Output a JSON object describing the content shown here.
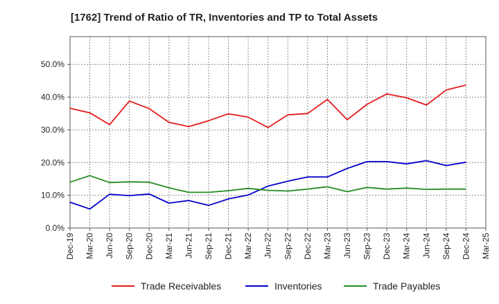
{
  "chart_data": {
    "type": "line",
    "title": "[1762]  Trend of Ratio of TR, Inventories and TP to Total Assets",
    "xlabel": "",
    "ylabel": "",
    "ylim": [
      0,
      0.585
    ],
    "y_ticks": [
      0,
      0.1,
      0.2,
      0.3,
      0.4,
      0.5
    ],
    "y_tick_labels": [
      "0.0%",
      "10.0%",
      "20.0%",
      "30.0%",
      "40.0%",
      "50.0%"
    ],
    "x_tick_labels": [
      "Dec-19",
      "Mar-20",
      "Jun-20",
      "Sep-20",
      "Dec-20",
      "Mar-21",
      "Jun-21",
      "Sep-21",
      "Dec-21",
      "Mar-22",
      "Jun-22",
      "Sep-22",
      "Dec-22",
      "Mar-23",
      "Jun-23",
      "Sep-23",
      "Dec-23",
      "Mar-24",
      "Jun-24",
      "Sep-24",
      "Dec-24",
      "Mar-25"
    ],
    "grid": true,
    "legend_position": "bottom",
    "categories": [
      "Dec-19",
      "Mar-20",
      "Jun-20",
      "Sep-20",
      "Dec-20",
      "Mar-21",
      "Jun-21",
      "Sep-21",
      "Dec-21",
      "Mar-22",
      "Jun-22",
      "Sep-22",
      "Dec-22",
      "Mar-23",
      "Jun-23",
      "Sep-23",
      "Dec-23",
      "Mar-24",
      "Jun-24",
      "Sep-24",
      "Dec-24"
    ],
    "series": [
      {
        "name": "Trade Receivables",
        "color": "#e41a1c",
        "values": [
          0.366,
          0.352,
          0.316,
          0.388,
          0.365,
          0.323,
          0.31,
          0.328,
          0.349,
          0.339,
          0.307,
          0.346,
          0.35,
          0.393,
          0.331,
          0.378,
          0.41,
          0.398,
          0.376,
          0.422,
          0.437
        ]
      },
      {
        "name": "Inventories",
        "color": "#0000cc",
        "values": [
          0.079,
          0.058,
          0.103,
          0.099,
          0.104,
          0.076,
          0.084,
          0.069,
          0.089,
          0.101,
          0.128,
          0.143,
          0.156,
          0.156,
          0.182,
          0.203,
          0.203,
          0.196,
          0.206,
          0.191,
          0.201
        ]
      },
      {
        "name": "Trade Payables",
        "color": "#228b22",
        "values": [
          0.14,
          0.16,
          0.139,
          0.141,
          0.14,
          0.123,
          0.109,
          0.109,
          0.114,
          0.121,
          0.115,
          0.113,
          0.119,
          0.126,
          0.111,
          0.124,
          0.119,
          0.122,
          0.118,
          0.119,
          0.119
        ]
      }
    ]
  }
}
